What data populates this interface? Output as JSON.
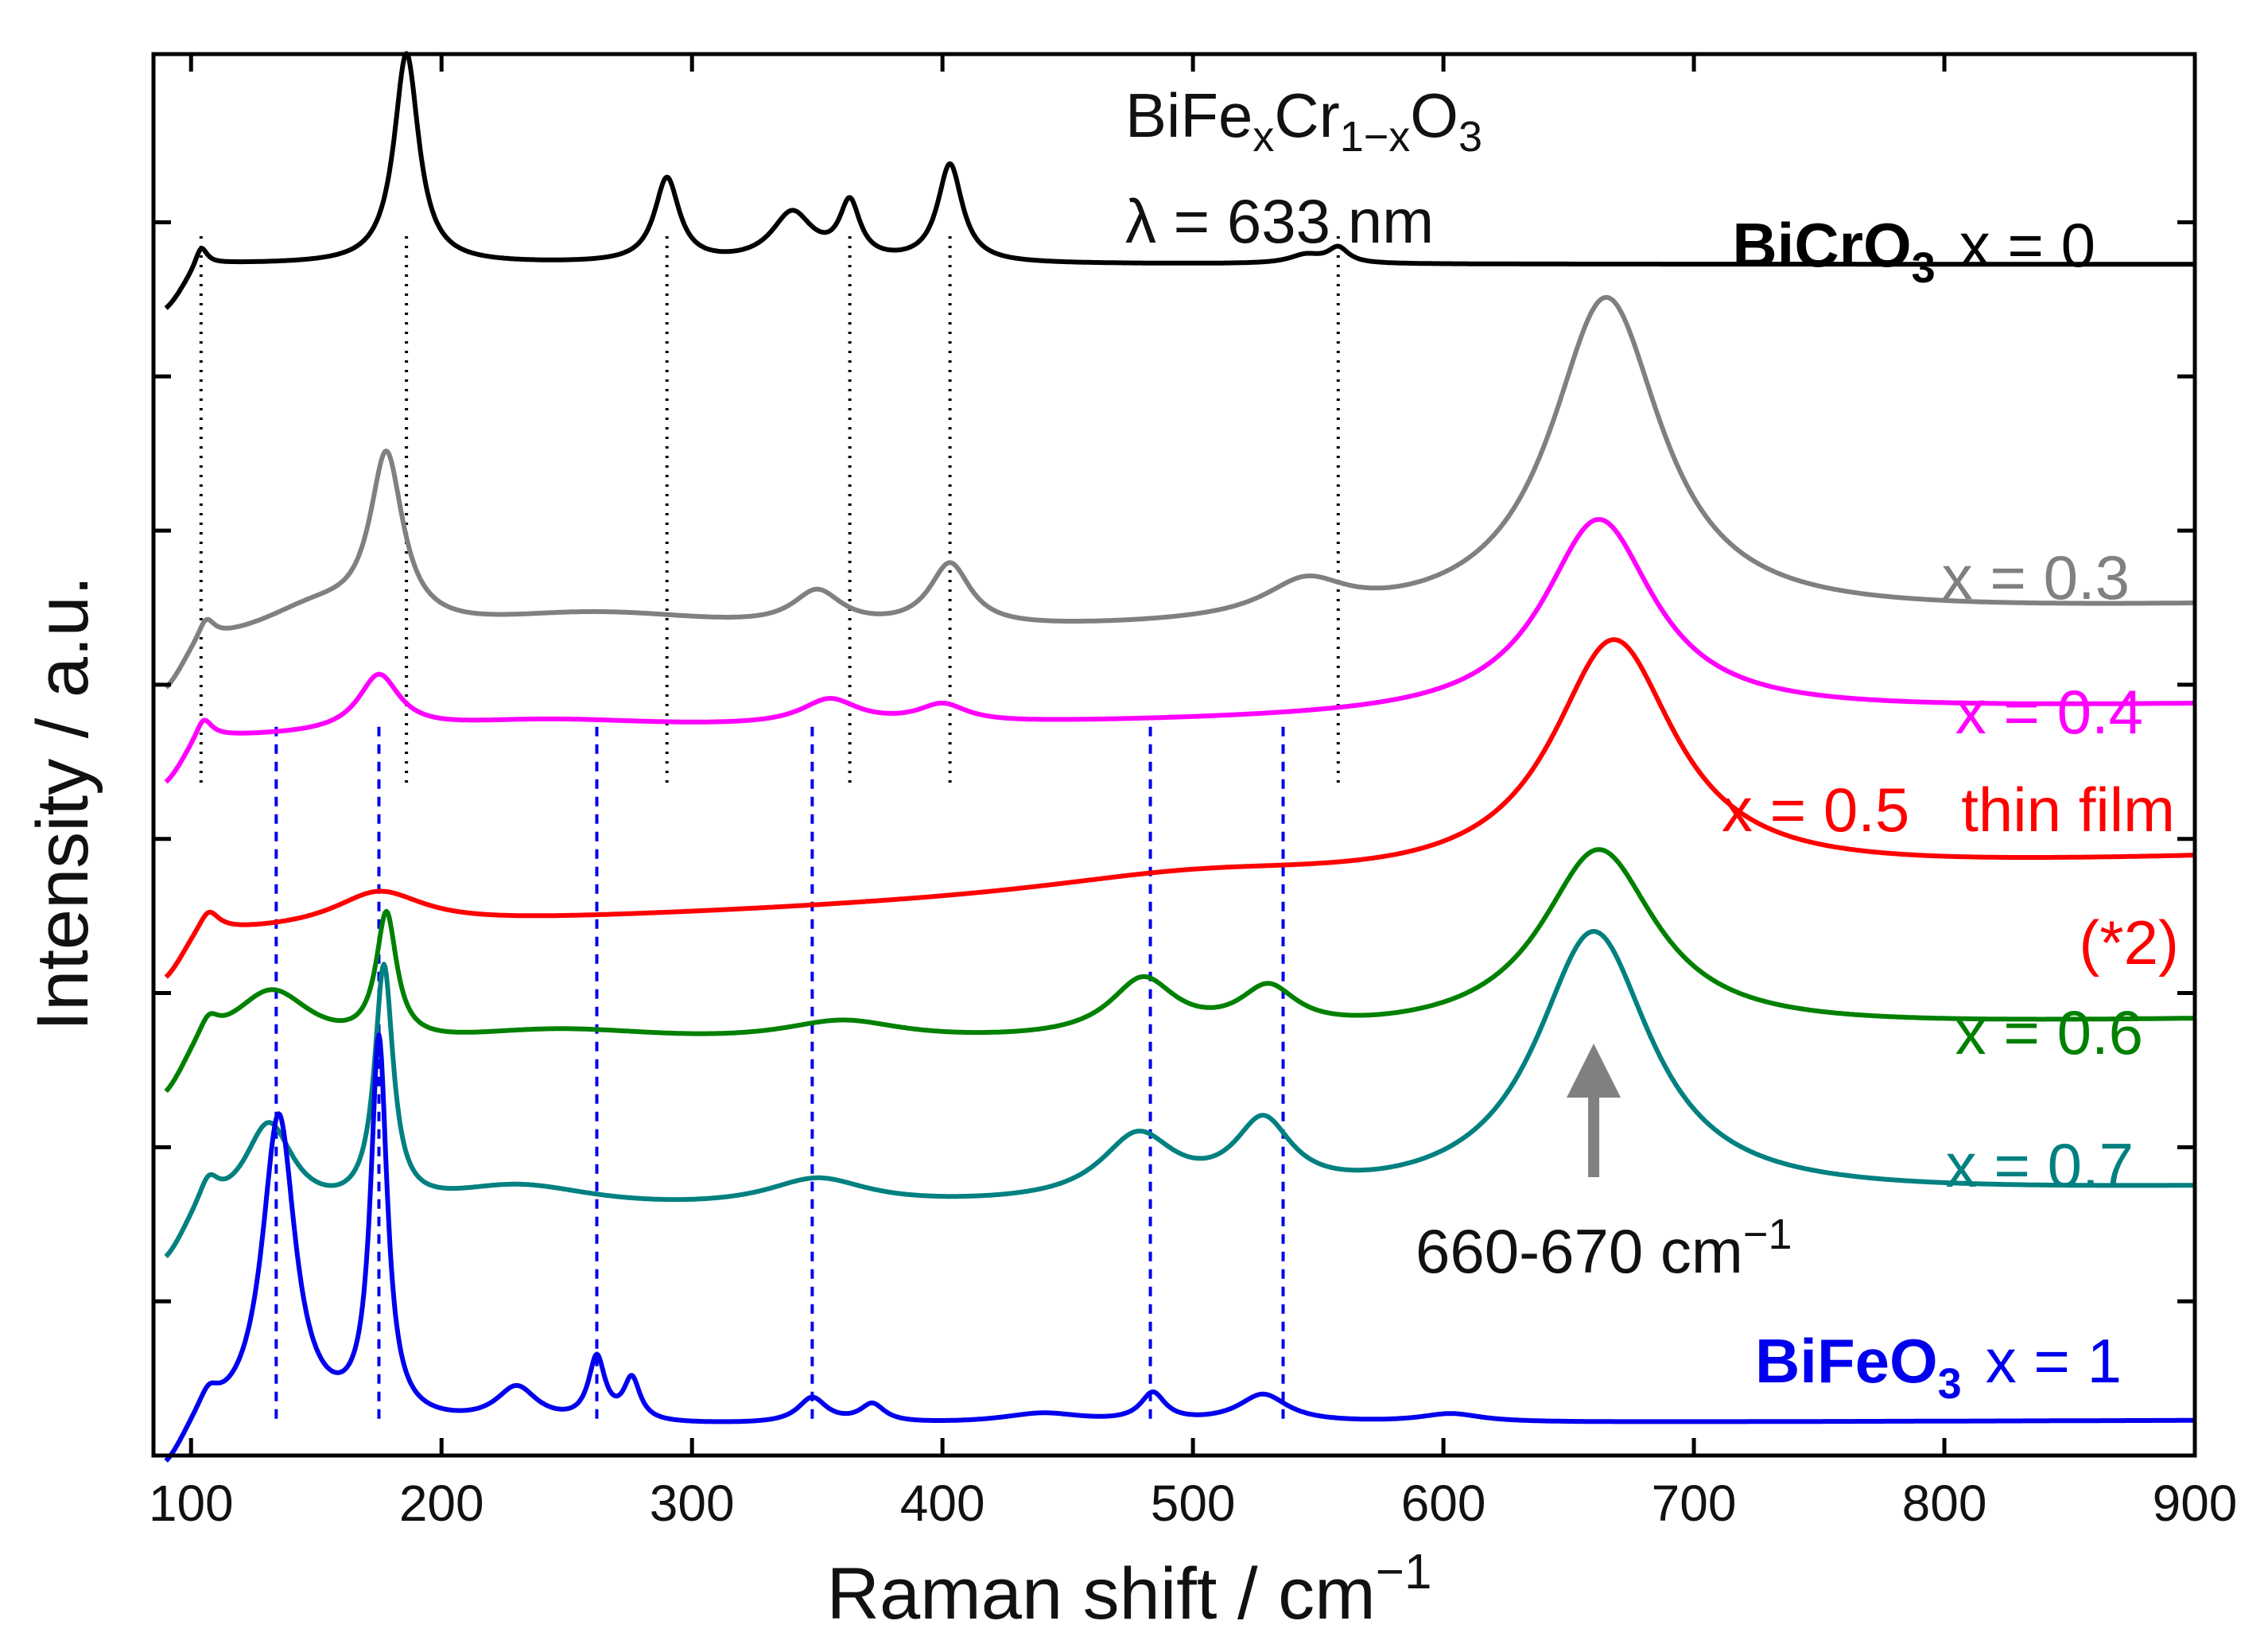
{
  "chart_data": {
    "type": "line",
    "title": "",
    "xlabel": "Raman shift / cm",
    "xlabel_sup": "−1",
    "ylabel": "Intensity / a.u.",
    "xlim": [
      85,
      900
    ],
    "ylim": [
      0,
      100
    ],
    "x_ticks": [
      100,
      200,
      300,
      400,
      500,
      600,
      700,
      800,
      900
    ],
    "y_ticks": [
      11,
      22,
      33,
      44,
      55,
      66,
      77,
      88
    ],
    "compound": {
      "base": "BiFe",
      "sub1": "x",
      "mid": "Cr",
      "sub2": "1−x",
      "end": "O",
      "sub3": "3"
    },
    "wavelength_label": "λ = 633 nm",
    "arrow_label": "660-670 cm",
    "arrow_label_sup": "−1",
    "arrow_x": 660,
    "bicro3_ref_lines": [
      104,
      186,
      290,
      363,
      403,
      558
    ],
    "bifeo3_ref_lines": [
      134,
      175,
      262,
      348,
      483,
      536
    ],
    "series": [
      {
        "name": "BiCrO3 x = 0",
        "formula_base": "BiCrO",
        "formula_sub": "3",
        "comp": "x = 0",
        "color": "#000000",
        "baseline": 85,
        "end": 85,
        "peaks": [
          [
            104,
            1.5,
            3
          ],
          [
            186,
            15,
            6
          ],
          [
            290,
            6,
            6
          ],
          [
            340,
            3.5,
            10
          ],
          [
            363,
            4,
            5
          ],
          [
            403,
            7,
            6
          ],
          [
            545,
            0.6,
            8
          ],
          [
            558,
            1.1,
            5
          ]
        ]
      },
      {
        "name": "x = 0.3",
        "comp": "x = 0.3",
        "color": "#808080",
        "baseline": 57,
        "end": 60.5,
        "peaks": [
          [
            106,
            1.5,
            4
          ],
          [
            178,
            12,
            8
          ],
          [
            150,
            2.5,
            30
          ],
          [
            260,
            2,
            70
          ],
          [
            350,
            2.5,
            12
          ],
          [
            403,
            4.5,
            10
          ],
          [
            545,
            2.5,
            20
          ],
          [
            665,
            23,
            27
          ]
        ]
      },
      {
        "name": "x = 0.4",
        "comp": "x = 0.4",
        "color": "#ff00ff",
        "baseline": 51,
        "end": 53.5,
        "peaks": [
          [
            105,
            1.5,
            4
          ],
          [
            175,
            4,
            10
          ],
          [
            240,
            0.9,
            60
          ],
          [
            355,
            1.8,
            14
          ],
          [
            400,
            1.3,
            12
          ],
          [
            662,
            14,
            27
          ]
        ]
      },
      {
        "name": "x = 0.5 thin film",
        "comp": "x = 0.5   thin film",
        "note": "(*2)",
        "color": "#ff0000",
        "baseline": 37,
        "end": 42.5,
        "peaks": [
          [
            107,
            1.5,
            5
          ],
          [
            175,
            2.5,
            22
          ],
          [
            500,
            1.5,
            80
          ],
          [
            668,
            17,
            30
          ]
        ]
      },
      {
        "name": "x = 0.6",
        "comp": "x = 0.6",
        "color": "#008000",
        "baseline": 28,
        "end": 31,
        "peaks": [
          [
            107,
            1.5,
            5
          ],
          [
            132,
            4.5,
            20
          ],
          [
            178,
            9,
            5
          ],
          [
            245,
            1.5,
            60
          ],
          [
            360,
            1.5,
            30
          ],
          [
            480,
            4,
            16
          ],
          [
            530,
            3,
            14
          ],
          [
            662,
            13,
            28
          ]
        ]
      },
      {
        "name": "x = 0.7",
        "comp": "x = 0.7",
        "color": "#008080",
        "baseline": 16.5,
        "end": 19,
        "peaks": [
          [
            107,
            2,
            5
          ],
          [
            131,
            6.5,
            12
          ],
          [
            177,
            17,
            4.5
          ],
          [
            230,
            2,
            40
          ],
          [
            350,
            2,
            25
          ],
          [
            478,
            4.5,
            18
          ],
          [
            528,
            5,
            14
          ],
          [
            660,
            19,
            28
          ]
        ]
      },
      {
        "name": "BiFeO3 x = 1",
        "formula_base": "BiFeO",
        "formula_sub": "3",
        "comp": "x = 1",
        "color": "#0000ee",
        "baseline": 2,
        "end": 2.5,
        "peaks": [
          [
            107,
            1.5,
            5
          ],
          [
            135,
            22,
            8
          ],
          [
            175,
            27,
            4
          ],
          [
            230,
            2.5,
            10
          ],
          [
            262,
            4.5,
            4
          ],
          [
            276,
            3,
            4
          ],
          [
            348,
            1.8,
            7
          ],
          [
            372,
            1.3,
            6
          ],
          [
            440,
            0.7,
            20
          ],
          [
            484,
            2,
            6
          ],
          [
            528,
            2,
            12
          ],
          [
            603,
            0.6,
            15
          ]
        ]
      }
    ]
  }
}
